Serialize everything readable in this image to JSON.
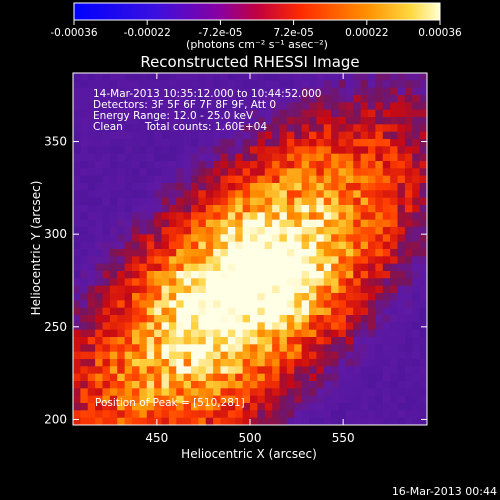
{
  "colorbar": {
    "ticks": [
      "-0.00036",
      "-0.00022",
      "-7.2e-05",
      "7.2e-05",
      "0.00022",
      "0.00036"
    ],
    "unit_label": "(photons cm⁻² s⁻¹ asec⁻²)",
    "range": [
      -0.00036,
      0.00036
    ],
    "colors": [
      "#1010ff",
      "#6a00c8",
      "#b00060",
      "#ff3000",
      "#ff9000",
      "#ffff70"
    ]
  },
  "chart_data": {
    "type": "heatmap",
    "title": "Reconstructed RHESSI Image",
    "xlabel": "Heliocentric X (arcsec)",
    "ylabel": "Heliocentric Y (arcsec)",
    "xlim": [
      405,
      595
    ],
    "ylim": [
      197,
      387
    ],
    "x_ticks": [
      450,
      500,
      550
    ],
    "y_ticks": [
      200,
      250,
      300,
      350
    ],
    "annotations": [
      "14-Mar-2013 10:35:12.000 to 10:44:52.000",
      "Detectors: 3F 5F 6F 7F 8F 9F, Att 0",
      "Energy Range: 12.0 - 25.0 keV",
      "Clean",
      "Total counts: 1.60E+04"
    ],
    "peak_label": "Position of Peak = [510,281]",
    "peak": [
      510,
      281
    ],
    "background_color": "#5a1fa8"
  },
  "footer": {
    "date": "16-Mar-2013 00:44"
  }
}
